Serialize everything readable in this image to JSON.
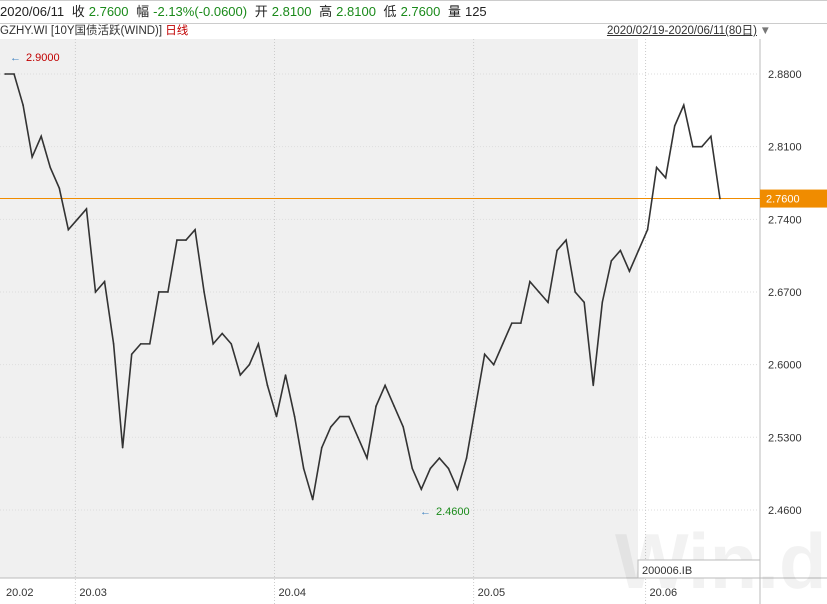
{
  "header": {
    "date": "2020/06/11",
    "close_label": "收",
    "close": "2.7600",
    "change_label": "幅",
    "change": "-2.13%(-0.0600)",
    "open_label": "开",
    "open": "2.8100",
    "high_label": "高",
    "high": "2.8100",
    "low_label": "低",
    "low": "2.7600",
    "volume_label": "量",
    "volume": "125"
  },
  "subheader": {
    "ticker": "GZHY.WI [10Y国债活跃(WIND)]",
    "period": "日线",
    "range": "2020/02/19-2020/06/11(80日)"
  },
  "colors": {
    "line": "#333333",
    "current": "#f08c00",
    "max_label": "#c00000",
    "min_label": "#1a8a1a",
    "shade": "#f0f0f0"
  },
  "chart_data": {
    "type": "line",
    "ylim": [
      2.43,
      2.93
    ],
    "yticks": [
      "2.8800",
      "2.8100",
      "2.7400",
      "2.6700",
      "2.6000",
      "2.5300",
      "2.4600"
    ],
    "xticks": [
      "20.02",
      "20.03",
      "20.04",
      "20.05",
      "20.06"
    ],
    "xtick_index": [
      0,
      8,
      30,
      52,
      71
    ],
    "current_value": "2.7600",
    "max_annotation": "2.9000",
    "min_annotation": "2.4600",
    "contract_label": "200006.IB",
    "watermark": "Win.d",
    "values": [
      2.88,
      2.88,
      2.85,
      2.8,
      2.82,
      2.79,
      2.77,
      2.73,
      2.74,
      2.75,
      2.67,
      2.68,
      2.62,
      2.52,
      2.61,
      2.62,
      2.62,
      2.67,
      2.67,
      2.72,
      2.72,
      2.73,
      2.67,
      2.62,
      2.63,
      2.62,
      2.59,
      2.6,
      2.62,
      2.58,
      2.55,
      2.59,
      2.55,
      2.5,
      2.47,
      2.52,
      2.54,
      2.55,
      2.55,
      2.53,
      2.51,
      2.56,
      2.58,
      2.56,
      2.54,
      2.5,
      2.48,
      2.5,
      2.51,
      2.5,
      2.48,
      2.51,
      2.56,
      2.61,
      2.6,
      2.62,
      2.64,
      2.64,
      2.68,
      2.67,
      2.66,
      2.71,
      2.72,
      2.67,
      2.66,
      2.58,
      2.66,
      2.7,
      2.71,
      2.69,
      2.71,
      2.73,
      2.79,
      2.78,
      2.83,
      2.85,
      2.81,
      2.81,
      2.82,
      2.76
    ]
  }
}
